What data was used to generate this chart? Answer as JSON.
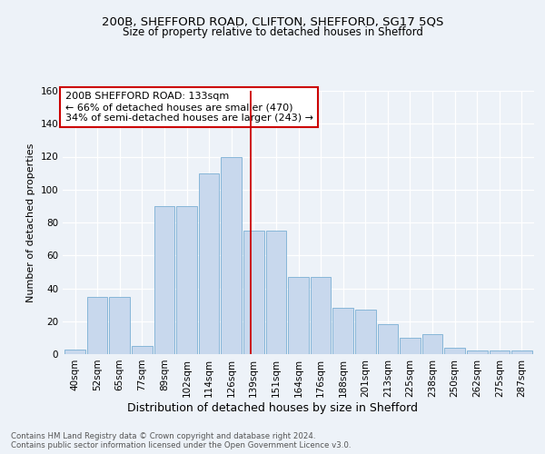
{
  "title1": "200B, SHEFFORD ROAD, CLIFTON, SHEFFORD, SG17 5QS",
  "title2": "Size of property relative to detached houses in Shefford",
  "xlabel": "Distribution of detached houses by size in Shefford",
  "ylabel": "Number of detached properties",
  "categories": [
    "40sqm",
    "52sqm",
    "65sqm",
    "77sqm",
    "89sqm",
    "102sqm",
    "114sqm",
    "126sqm",
    "139sqm",
    "151sqm",
    "164sqm",
    "176sqm",
    "188sqm",
    "201sqm",
    "213sqm",
    "225sqm",
    "238sqm",
    "250sqm",
    "262sqm",
    "275sqm",
    "287sqm"
  ],
  "values": [
    3,
    35,
    35,
    5,
    90,
    90,
    110,
    120,
    75,
    75,
    47,
    47,
    28,
    27,
    18,
    10,
    12,
    4,
    2,
    2,
    2
  ],
  "bar_color": "#c8d8ed",
  "bar_edge_color": "#7aafd4",
  "vline_color": "#cc0000",
  "annotation_text": "200B SHEFFORD ROAD: 133sqm\n← 66% of detached houses are smaller (470)\n34% of semi-detached houses are larger (243) →",
  "annotation_box_color": "#ffffff",
  "annotation_box_edge": "#cc0000",
  "footer_text": "Contains HM Land Registry data © Crown copyright and database right 2024.\nContains public sector information licensed under the Open Government Licence v3.0.",
  "ylim": [
    0,
    160
  ],
  "yticks": [
    0,
    20,
    40,
    60,
    80,
    100,
    120,
    140,
    160
  ],
  "bg_color": "#edf2f8",
  "plot_bg": "#edf2f8",
  "grid_color": "#ffffff"
}
